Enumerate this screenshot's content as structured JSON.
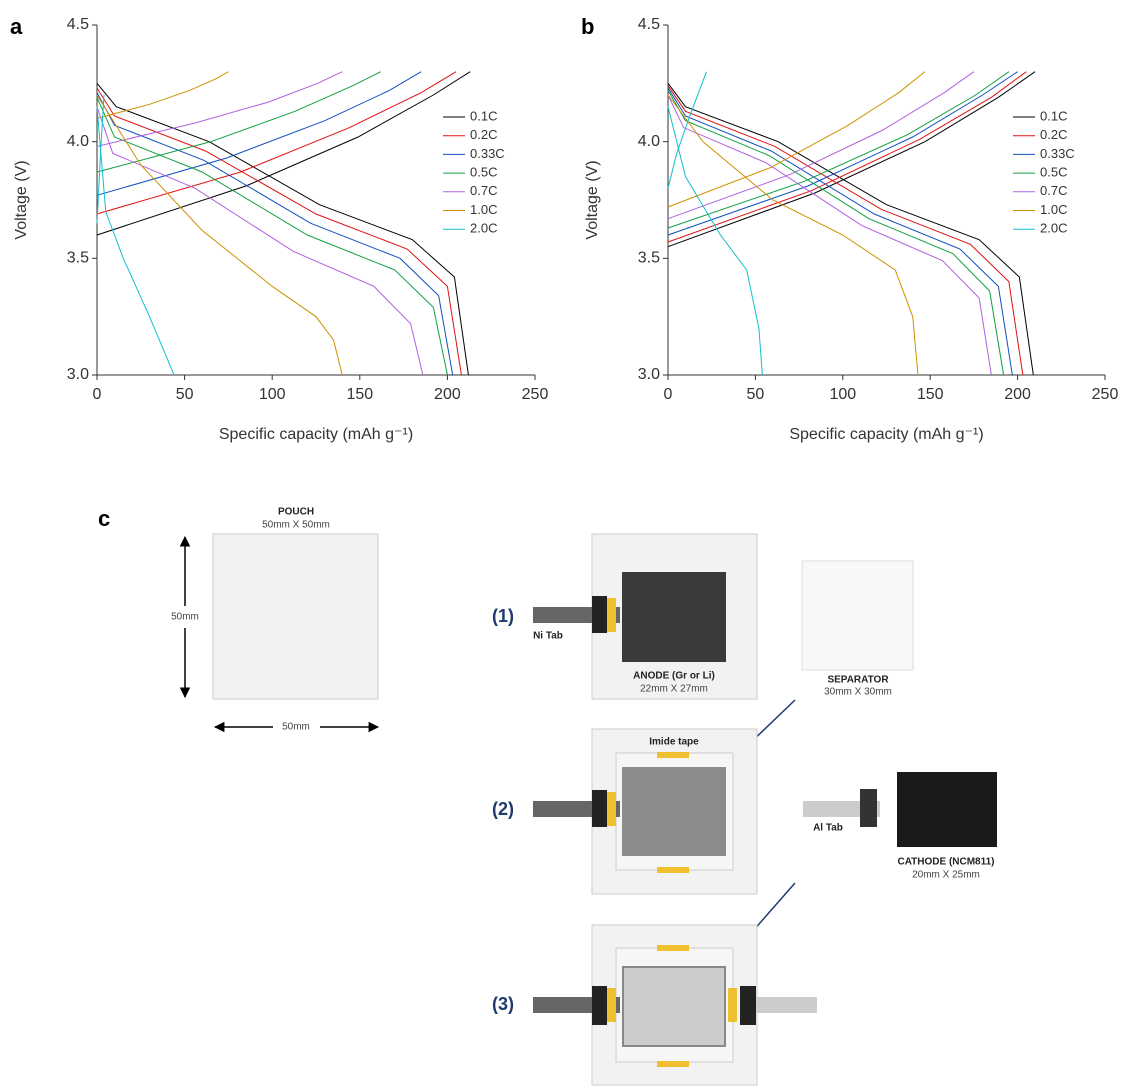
{
  "chart_data": [
    {
      "type": "line",
      "panel_label": "a",
      "xlabel": "Specific capacity (mAh g⁻¹)",
      "ylabel": "Voltage (V)",
      "xlim": [
        0,
        250
      ],
      "ylim": [
        3,
        4.5
      ],
      "xticks": [
        0,
        50,
        100,
        150,
        200,
        250
      ],
      "yticks": [
        {
          "value": 3,
          "label": "3.0"
        },
        3.5,
        {
          "value": 4,
          "label": "4.0"
        },
        4.5
      ],
      "legend": "right",
      "series": [
        {
          "name": "0.1C",
          "color": "#000000",
          "x": [
            0,
            11,
            64,
            127,
            180,
            204,
            212,
            null,
            0,
            85,
            149,
            192,
            213
          ],
          "values": [
            4.25,
            4.15,
            4.0,
            3.73,
            3.58,
            3.42,
            3.0,
            null,
            3.6,
            3.81,
            4.02,
            4.2,
            4.3
          ]
        },
        {
          "name": "0.2C",
          "color": "#e01010",
          "x": [
            0,
            10,
            62,
            125,
            177,
            200,
            208,
            null,
            0,
            82,
            144,
            185,
            205
          ],
          "values": [
            4.23,
            4.11,
            3.96,
            3.69,
            3.54,
            3.38,
            3.0,
            null,
            3.69,
            3.87,
            4.06,
            4.21,
            4.3
          ]
        },
        {
          "name": "0.33C",
          "color": "#1050c0",
          "x": [
            0,
            10,
            61,
            122,
            173,
            195,
            203,
            null,
            0,
            74,
            130,
            167,
            185
          ],
          "values": [
            4.21,
            4.07,
            3.92,
            3.65,
            3.5,
            3.34,
            3.0,
            null,
            3.77,
            3.93,
            4.09,
            4.22,
            4.3
          ]
        },
        {
          "name": "0.5C",
          "color": "#10a040",
          "x": [
            0,
            10,
            60,
            120,
            170,
            192,
            200,
            null,
            0,
            65,
            113,
            146,
            162
          ],
          "values": [
            4.19,
            4.02,
            3.87,
            3.6,
            3.45,
            3.29,
            3.0,
            null,
            3.87,
            4.0,
            4.13,
            4.24,
            4.3
          ]
        },
        {
          "name": "0.7C",
          "color": "#b060e0",
          "x": [
            0,
            9,
            56,
            112,
            158,
            179,
            186,
            null,
            0,
            56,
            98,
            126,
            140
          ],
          "values": [
            4.15,
            3.95,
            3.8,
            3.53,
            3.38,
            3.22,
            3.0,
            null,
            3.98,
            4.08,
            4.17,
            4.25,
            4.3
          ]
        },
        {
          "name": "1.0C",
          "color": "#d09000",
          "x": [
            0,
            25,
            60,
            100,
            125,
            135,
            140,
            null,
            0,
            30,
            53,
            68,
            75
          ],
          "values": [
            4.2,
            3.9,
            3.62,
            3.38,
            3.25,
            3.15,
            3.0,
            null,
            4.1,
            4.16,
            4.22,
            4.27,
            4.3
          ]
        },
        {
          "name": "2.0C",
          "color": "#10c0d0",
          "x": [
            0,
            5,
            15,
            30,
            44,
            null,
            0,
            2,
            4
          ],
          "values": [
            4.15,
            3.7,
            3.5,
            3.25,
            3.0,
            null,
            3.65,
            3.95,
            4.2
          ]
        }
      ]
    },
    {
      "type": "line",
      "panel_label": "b",
      "xlabel": "Specific capacity (mAh g⁻¹)",
      "ylabel": "Voltage (V)",
      "xlim": [
        0,
        250
      ],
      "ylim": [
        3,
        4.5
      ],
      "xticks": [
        0,
        50,
        100,
        150,
        200,
        250
      ],
      "yticks": [
        {
          "value": 3,
          "label": "3.0"
        },
        3.5,
        {
          "value": 4,
          "label": "4.0"
        },
        4.5
      ],
      "legend": "right",
      "series": [
        {
          "name": "0.1C",
          "color": "#000000",
          "x": [
            0,
            10,
            63,
            125,
            178,
            201,
            209,
            null,
            0,
            84,
            147,
            189,
            210
          ],
          "values": [
            4.25,
            4.15,
            4.0,
            3.73,
            3.58,
            3.42,
            3.0,
            null,
            3.55,
            3.78,
            4.0,
            4.19,
            4.3
          ]
        },
        {
          "name": "0.2C",
          "color": "#e01010",
          "x": [
            0,
            10,
            61,
            122,
            173,
            195,
            203,
            null,
            0,
            82,
            144,
            185,
            205
          ],
          "values": [
            4.24,
            4.13,
            3.98,
            3.71,
            3.56,
            3.4,
            3.0,
            null,
            3.57,
            3.79,
            4.01,
            4.19,
            4.3
          ]
        },
        {
          "name": "0.33C",
          "color": "#1050c0",
          "x": [
            0,
            10,
            59,
            118,
            167,
            189,
            197,
            null,
            0,
            80,
            140,
            180,
            200
          ],
          "values": [
            4.23,
            4.11,
            3.96,
            3.69,
            3.54,
            3.38,
            3.0,
            null,
            3.6,
            3.81,
            4.02,
            4.2,
            4.3
          ]
        },
        {
          "name": "0.5C",
          "color": "#10a040",
          "x": [
            0,
            10,
            58,
            115,
            163,
            184,
            192,
            null,
            0,
            78,
            137,
            176,
            195
          ],
          "values": [
            4.22,
            4.09,
            3.94,
            3.67,
            3.52,
            3.36,
            3.0,
            null,
            3.63,
            3.83,
            4.03,
            4.2,
            4.3
          ]
        },
        {
          "name": "0.7C",
          "color": "#b060e0",
          "x": [
            0,
            9,
            56,
            111,
            157,
            178,
            185,
            null,
            0,
            70,
            123,
            158,
            175
          ],
          "values": [
            4.2,
            4.06,
            3.91,
            3.64,
            3.49,
            3.33,
            3.0,
            null,
            3.67,
            3.86,
            4.05,
            4.21,
            4.3
          ]
        },
        {
          "name": "1.0C",
          "color": "#d09000",
          "x": [
            0,
            20,
            60,
            100,
            130,
            140,
            143,
            null,
            0,
            59,
            103,
            132,
            147
          ],
          "values": [
            4.2,
            4.0,
            3.75,
            3.6,
            3.45,
            3.25,
            3.0,
            null,
            3.72,
            3.89,
            4.07,
            4.21,
            4.3
          ]
        },
        {
          "name": "2.0C",
          "color": "#10c0d0",
          "x": [
            0,
            10,
            30,
            45,
            52,
            54,
            null,
            0,
            5,
            12,
            18,
            22
          ],
          "values": [
            4.15,
            3.85,
            3.6,
            3.45,
            3.2,
            3.0,
            null,
            3.8,
            3.95,
            4.1,
            4.22,
            4.3
          ]
        }
      ]
    }
  ],
  "diagram": {
    "panel_label": "c",
    "pouch_title": "POUCH",
    "pouch_size": "50mm X 50mm",
    "pouch_height": "50mm",
    "pouch_width": "50mm",
    "steps": [
      "(1)",
      "(2)",
      "(3)"
    ],
    "ni_tab": "Ni Tab",
    "anode": "ANODE (Gr or Li)",
    "anode_size": "22mm X 27mm",
    "separator": "SEPARATOR",
    "separator_size": "30mm X 30mm",
    "imide_tape": "Imide tape",
    "al_tab": "Al Tab",
    "cathode": "CATHODE (NCM811)",
    "cathode_size": "20mm X 25mm"
  }
}
